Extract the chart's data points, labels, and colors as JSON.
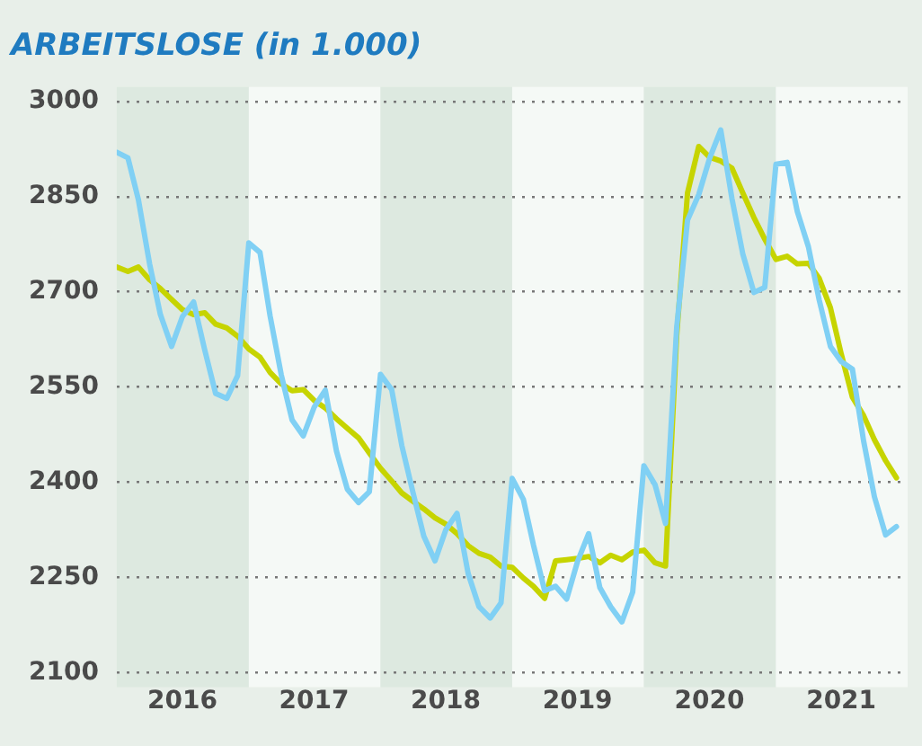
{
  "chart_data": {
    "type": "line",
    "title": "ARBEITSLOSE (in 1.000)",
    "x": [
      "2016-01",
      "2016-02",
      "2016-03",
      "2016-04",
      "2016-05",
      "2016-06",
      "2016-07",
      "2016-08",
      "2016-09",
      "2016-10",
      "2016-11",
      "2016-12",
      "2017-01",
      "2017-02",
      "2017-03",
      "2017-04",
      "2017-05",
      "2017-06",
      "2017-07",
      "2017-08",
      "2017-09",
      "2017-10",
      "2017-11",
      "2017-12",
      "2018-01",
      "2018-02",
      "2018-03",
      "2018-04",
      "2018-05",
      "2018-06",
      "2018-07",
      "2018-08",
      "2018-09",
      "2018-10",
      "2018-11",
      "2018-12",
      "2019-01",
      "2019-02",
      "2019-03",
      "2019-04",
      "2019-05",
      "2019-06",
      "2019-07",
      "2019-08",
      "2019-09",
      "2019-10",
      "2019-11",
      "2019-12",
      "2020-01",
      "2020-02",
      "2020-03",
      "2020-04",
      "2020-05",
      "2020-06",
      "2020-07",
      "2020-08",
      "2020-09",
      "2020-10",
      "2020-11",
      "2020-12",
      "2021-01",
      "2021-02",
      "2021-03",
      "2021-04",
      "2021-05",
      "2021-06",
      "2021-07",
      "2021-08",
      "2021-09",
      "2021-10",
      "2021-11",
      "2021-12"
    ],
    "series": [
      {
        "color": "#80d0f4",
        "values": [
          2920,
          2911,
          2845,
          2744,
          2664,
          2614,
          2661,
          2684,
          2608,
          2540,
          2532,
          2568,
          2777,
          2762,
          2662,
          2569,
          2498,
          2473,
          2518,
          2545,
          2449,
          2389,
          2368,
          2385,
          2570,
          2546,
          2458,
          2384,
          2315,
          2276,
          2325,
          2351,
          2256,
          2204,
          2186,
          2210,
          2406,
          2373,
          2301,
          2229,
          2236,
          2216,
          2275,
          2319,
          2234,
          2204,
          2180,
          2227,
          2426,
          2396,
          2335,
          2644,
          2813,
          2853,
          2910,
          2955,
          2847,
          2760,
          2699,
          2707,
          2901,
          2904,
          2827,
          2771,
          2687,
          2614,
          2590,
          2578,
          2465,
          2377,
          2317,
          2330
        ]
      },
      {
        "color": "#c6d400",
        "values": [
          2739,
          2732,
          2739,
          2719,
          2705,
          2688,
          2672,
          2664,
          2667,
          2649,
          2643,
          2630,
          2610,
          2597,
          2573,
          2555,
          2544,
          2546,
          2529,
          2517,
          2500,
          2485,
          2470,
          2446,
          2422,
          2402,
          2383,
          2370,
          2358,
          2344,
          2334,
          2319,
          2300,
          2288,
          2282,
          2268,
          2266,
          2249,
          2236,
          2217,
          2276,
          2278,
          2280,
          2283,
          2273,
          2285,
          2278,
          2290,
          2293,
          2273,
          2268,
          2631,
          2856,
          2929,
          2912,
          2906,
          2895,
          2856,
          2817,
          2783,
          2751,
          2756,
          2744,
          2745,
          2721,
          2675,
          2602,
          2534,
          2505,
          2467,
          2434,
          2407
        ]
      }
    ],
    "xlim": [
      "2016-01-01",
      "2022-01-01"
    ],
    "xticks": [
      {
        "value": "2016-07-01",
        "label": "2016"
      },
      {
        "value": "2017-07-01",
        "label": "2017"
      },
      {
        "value": "2018-07-01",
        "label": "2018"
      },
      {
        "value": "2019-07-01",
        "label": "2019"
      },
      {
        "value": "2020-07-01",
        "label": "2020"
      },
      {
        "value": "2021-07-01",
        "label": "2021"
      }
    ],
    "ylim": [
      2100,
      3000
    ],
    "yticks": [
      2100,
      2250,
      2400,
      2550,
      2700,
      2850,
      3000
    ],
    "grid": "y",
    "legend": false,
    "bands": [
      {
        "axis": "x",
        "from": "2016-01-01",
        "to": "2017-01-01",
        "color": "#dde9e0"
      },
      {
        "axis": "x",
        "from": "2017-01-01",
        "to": "2018-01-01",
        "color": "#f5f9f6"
      },
      {
        "axis": "x",
        "from": "2018-01-01",
        "to": "2019-01-01",
        "color": "#dde9e0"
      },
      {
        "axis": "x",
        "from": "2019-01-01",
        "to": "2020-01-01",
        "color": "#f5f9f6"
      },
      {
        "axis": "x",
        "from": "2020-01-01",
        "to": "2021-01-01",
        "color": "#dde9e0"
      },
      {
        "axis": "x",
        "from": "2021-01-01",
        "to": "2022-01-01",
        "color": "#f5f9f6"
      }
    ]
  }
}
